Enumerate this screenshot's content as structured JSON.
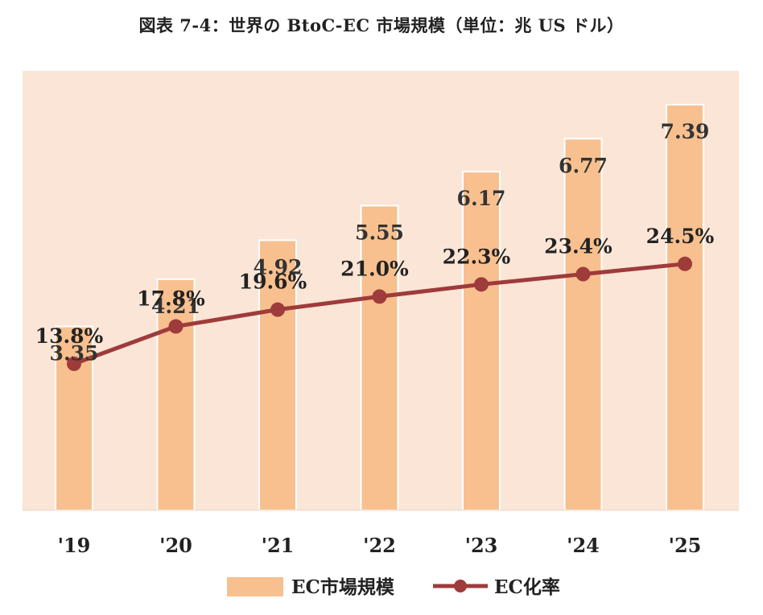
{
  "title": "図表 7-4：世界の BtoC-EC 市場規模（単位：兆 US ドル）",
  "colors": {
    "plot_background": "#fbe5d6",
    "bar": "#f8c08f",
    "line": "#9e3b3b"
  },
  "chart_data": {
    "type": "bar",
    "title": "図表 7-4：世界の BtoC-EC 市場規模（単位：兆 US ドル）",
    "categories": [
      "'19",
      "'20",
      "'21",
      "'22",
      "'23",
      "'24",
      "'25"
    ],
    "series": [
      {
        "name": "EC市場規模",
        "type": "bar",
        "values": [
          3.35,
          4.21,
          4.92,
          5.55,
          6.17,
          6.77,
          7.39
        ],
        "labels": [
          "3.35",
          "4.21",
          "4.92",
          "5.55",
          "6.17",
          "6.77",
          "7.39"
        ]
      },
      {
        "name": "EC化率",
        "type": "line",
        "values": [
          13.8,
          17.8,
          19.6,
          21.0,
          22.3,
          23.4,
          24.5
        ],
        "labels": [
          "13.8%",
          "17.8%",
          "19.6%",
          "21.0%",
          "22.3%",
          "23.4%",
          "24.5%"
        ]
      }
    ],
    "ylim_bar": [
      0,
      8
    ],
    "ylim_line": [
      0,
      40
    ],
    "grid": false,
    "legend": "bottom"
  }
}
